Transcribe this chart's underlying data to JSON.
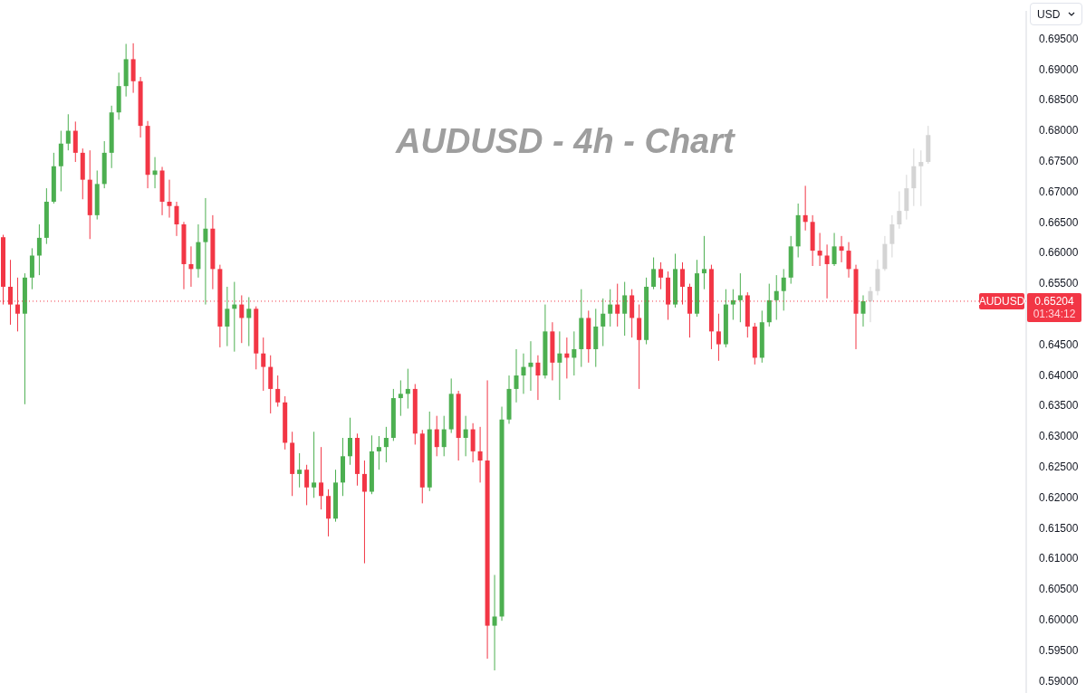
{
  "chart_data": {
    "type": "candlestick",
    "title": "AUDUSD - 4h - Chart",
    "ylabel": "USD",
    "categories": [
      null,
      null,
      null,
      null,
      null,
      null,
      null,
      null,
      null,
      null,
      null,
      null,
      null,
      null,
      null,
      null,
      null,
      null,
      null,
      null,
      null,
      null,
      null,
      null,
      null,
      null,
      null,
      null,
      null,
      null,
      null,
      null,
      null,
      null,
      null,
      null,
      null,
      null,
      null,
      null,
      null,
      null,
      null,
      null,
      null,
      null,
      null,
      null,
      null,
      null,
      null,
      null,
      null,
      null,
      null,
      null,
      null,
      null,
      null,
      null,
      null,
      null,
      null,
      null,
      null,
      null,
      null,
      null,
      null,
      null,
      null,
      null,
      null,
      null,
      null,
      null,
      null,
      null,
      null,
      null,
      null,
      null,
      null,
      null,
      null,
      null,
      null,
      null,
      null,
      null,
      null,
      null,
      null,
      null,
      null,
      null,
      null,
      null,
      null,
      null,
      null,
      null,
      null,
      null,
      null,
      null,
      null,
      null,
      null,
      null,
      null,
      null,
      null,
      null,
      null,
      null,
      null,
      null,
      null,
      null,
      null,
      null,
      null,
      null,
      null,
      null,
      null,
      null,
      null,
      null,
      null,
      null,
      null,
      null,
      null,
      null,
      null,
      null,
      null,
      null,
      null,
      null
    ],
    "series": [
      {
        "ohlc": [
          [
            0.6625,
            0.6629,
            0.6515,
            0.6544
          ],
          [
            0.6544,
            0.6588,
            0.6482,
            0.6515
          ],
          [
            0.6515,
            0.6559,
            0.6471,
            0.65
          ],
          [
            0.65,
            0.6566,
            0.6352,
            0.6559
          ],
          [
            0.6559,
            0.6607,
            0.654,
            0.6595
          ],
          [
            0.6595,
            0.6646,
            0.6563,
            0.6624
          ],
          [
            0.6624,
            0.6705,
            0.6614,
            0.6683
          ],
          [
            0.6683,
            0.6763,
            0.668,
            0.6741
          ],
          [
            0.6741,
            0.6799,
            0.67,
            0.6778
          ],
          [
            0.6778,
            0.6826,
            0.6767,
            0.6799
          ],
          [
            0.6799,
            0.6814,
            0.6748,
            0.6763
          ],
          [
            0.6763,
            0.677,
            0.6687,
            0.6719
          ],
          [
            0.6719,
            0.6767,
            0.6622,
            0.6661
          ],
          [
            0.6661,
            0.6734,
            0.6654,
            0.6712
          ],
          [
            0.6712,
            0.6782,
            0.6705,
            0.6763
          ],
          [
            0.6763,
            0.684,
            0.6738,
            0.6829
          ],
          [
            0.6829,
            0.6894,
            0.6817,
            0.6872
          ],
          [
            0.6872,
            0.6941,
            0.6855,
            0.6916
          ],
          [
            0.6916,
            0.6942,
            0.6861,
            0.688
          ],
          [
            0.688,
            0.6887,
            0.6788,
            0.6807
          ],
          [
            0.6807,
            0.6815,
            0.6705,
            0.6727
          ],
          [
            0.6727,
            0.6756,
            0.6705,
            0.6734
          ],
          [
            0.6734,
            0.674,
            0.6661,
            0.6683
          ],
          [
            0.6683,
            0.6719,
            0.6657,
            0.6676
          ],
          [
            0.6676,
            0.6683,
            0.6627,
            0.6646
          ],
          [
            0.6646,
            0.665,
            0.654,
            0.6581
          ],
          [
            0.6581,
            0.661,
            0.6544,
            0.6573
          ],
          [
            0.6573,
            0.6646,
            0.6559,
            0.6617
          ],
          [
            0.6617,
            0.6689,
            0.6515,
            0.6639
          ],
          [
            0.6639,
            0.6661,
            0.654,
            0.6573
          ],
          [
            0.6573,
            0.658,
            0.6445,
            0.6479
          ],
          [
            0.6479,
            0.6544,
            0.6447,
            0.6508
          ],
          [
            0.6508,
            0.6552,
            0.6438,
            0.6515
          ],
          [
            0.6515,
            0.653,
            0.6452,
            0.6493
          ],
          [
            0.6493,
            0.6527,
            0.6447,
            0.6508
          ],
          [
            0.6508,
            0.6512,
            0.6409,
            0.6435
          ],
          [
            0.6435,
            0.6461,
            0.6374,
            0.6413
          ],
          [
            0.6413,
            0.6432,
            0.6337,
            0.6377
          ],
          [
            0.6377,
            0.6399,
            0.6348,
            0.6355
          ],
          [
            0.6355,
            0.6365,
            0.6278,
            0.6289
          ],
          [
            0.6289,
            0.6307,
            0.6202,
            0.6238
          ],
          [
            0.6238,
            0.6272,
            0.6216,
            0.6245
          ],
          [
            0.6245,
            0.6253,
            0.6187,
            0.6216
          ],
          [
            0.6216,
            0.6307,
            0.6199,
            0.6224
          ],
          [
            0.6224,
            0.6282,
            0.618,
            0.6202
          ],
          [
            0.6202,
            0.6213,
            0.6136,
            0.6165
          ],
          [
            0.6165,
            0.6245,
            0.616,
            0.6224
          ],
          [
            0.6224,
            0.6297,
            0.6202,
            0.6267
          ],
          [
            0.6267,
            0.633,
            0.6253,
            0.6297
          ],
          [
            0.6297,
            0.6304,
            0.6219,
            0.6238
          ],
          [
            0.6238,
            0.626,
            0.6092,
            0.6209
          ],
          [
            0.6209,
            0.6301,
            0.6205,
            0.6275
          ],
          [
            0.6275,
            0.63,
            0.6245,
            0.6282
          ],
          [
            0.6282,
            0.6315,
            0.6257,
            0.6297
          ],
          [
            0.6297,
            0.6377,
            0.6292,
            0.6362
          ],
          [
            0.6362,
            0.6391,
            0.6333,
            0.6369
          ],
          [
            0.6369,
            0.641,
            0.6345,
            0.6377
          ],
          [
            0.6377,
            0.6385,
            0.6286,
            0.6304
          ],
          [
            0.6304,
            0.631,
            0.619,
            0.6216
          ],
          [
            0.6216,
            0.634,
            0.621,
            0.6311
          ],
          [
            0.6311,
            0.6333,
            0.6267,
            0.6282
          ],
          [
            0.6282,
            0.6333,
            0.6267,
            0.6311
          ],
          [
            0.6311,
            0.6394,
            0.6305,
            0.6369
          ],
          [
            0.6369,
            0.6374,
            0.626,
            0.6297
          ],
          [
            0.6297,
            0.6333,
            0.6267,
            0.6311
          ],
          [
            0.6311,
            0.6321,
            0.6257,
            0.6275
          ],
          [
            0.6275,
            0.6315,
            0.6224,
            0.626
          ],
          [
            0.626,
            0.6391,
            0.5936,
            0.599
          ],
          [
            0.599,
            0.6073,
            0.5917,
            0.6005
          ],
          [
            0.6005,
            0.6348,
            0.5998,
            0.6327
          ],
          [
            0.6327,
            0.6399,
            0.632,
            0.6377
          ],
          [
            0.6377,
            0.6442,
            0.6355,
            0.6399
          ],
          [
            0.6399,
            0.6435,
            0.6369,
            0.6413
          ],
          [
            0.6413,
            0.6455,
            0.6374,
            0.642
          ],
          [
            0.642,
            0.6432,
            0.6359,
            0.6399
          ],
          [
            0.6399,
            0.6515,
            0.6394,
            0.6471
          ],
          [
            0.6471,
            0.6486,
            0.6391,
            0.642
          ],
          [
            0.642,
            0.6471,
            0.6359,
            0.6435
          ],
          [
            0.6435,
            0.6461,
            0.6394,
            0.6428
          ],
          [
            0.6428,
            0.6471,
            0.6399,
            0.6442
          ],
          [
            0.6442,
            0.654,
            0.6413,
            0.6493
          ],
          [
            0.6493,
            0.6505,
            0.642,
            0.6442
          ],
          [
            0.6442,
            0.6508,
            0.6413,
            0.6479
          ],
          [
            0.6479,
            0.6525,
            0.6447,
            0.65
          ],
          [
            0.65,
            0.654,
            0.6479,
            0.6515
          ],
          [
            0.6515,
            0.6549,
            0.6479,
            0.65
          ],
          [
            0.65,
            0.6552,
            0.6464,
            0.653
          ],
          [
            0.653,
            0.654,
            0.6461,
            0.6493
          ],
          [
            0.6493,
            0.6515,
            0.6377,
            0.6457
          ],
          [
            0.6457,
            0.6559,
            0.645,
            0.6544
          ],
          [
            0.6544,
            0.6592,
            0.654,
            0.6573
          ],
          [
            0.6573,
            0.6584,
            0.654,
            0.6559
          ],
          [
            0.6559,
            0.6569,
            0.649,
            0.6515
          ],
          [
            0.6515,
            0.6598,
            0.651,
            0.6573
          ],
          [
            0.6573,
            0.6584,
            0.6515,
            0.6544
          ],
          [
            0.6544,
            0.6549,
            0.6461,
            0.65
          ],
          [
            0.65,
            0.6588,
            0.6495,
            0.6566
          ],
          [
            0.6566,
            0.6627,
            0.654,
            0.6573
          ],
          [
            0.6573,
            0.658,
            0.6442,
            0.6471
          ],
          [
            0.6471,
            0.65,
            0.6423,
            0.645
          ],
          [
            0.645,
            0.654,
            0.6445,
            0.6515
          ],
          [
            0.6515,
            0.654,
            0.649,
            0.6522
          ],
          [
            0.6522,
            0.6566,
            0.6486,
            0.653
          ],
          [
            0.653,
            0.6535,
            0.6461,
            0.6479
          ],
          [
            0.6479,
            0.6485,
            0.6417,
            0.6428
          ],
          [
            0.6428,
            0.6505,
            0.642,
            0.6486
          ],
          [
            0.6486,
            0.6549,
            0.6479,
            0.6522
          ],
          [
            0.6522,
            0.6563,
            0.649,
            0.6537
          ],
          [
            0.6537,
            0.6573,
            0.6505,
            0.6559
          ],
          [
            0.6559,
            0.6627,
            0.6549,
            0.661
          ],
          [
            0.661,
            0.668,
            0.6592,
            0.6661
          ],
          [
            0.6661,
            0.6709,
            0.6636,
            0.665
          ],
          [
            0.665,
            0.6661,
            0.6578,
            0.6603
          ],
          [
            0.6603,
            0.6632,
            0.6578,
            0.6595
          ],
          [
            0.6595,
            0.6613,
            0.6525,
            0.6581
          ],
          [
            0.6581,
            0.6632,
            0.6578,
            0.661
          ],
          [
            0.661,
            0.6627,
            0.6584,
            0.6603
          ],
          [
            0.6603,
            0.6617,
            0.6559,
            0.6573
          ],
          [
            0.6573,
            0.658,
            0.6442,
            0.65
          ],
          [
            0.65,
            0.653,
            0.6479,
            0.65204
          ],
          null,
          null,
          null,
          null,
          null,
          null,
          null,
          null,
          null,
          null,
          null,
          null,
          null,
          null,
          null,
          null,
          null,
          null,
          null,
          null,
          null,
          null
        ],
        "colors": [
          "#f23645",
          "#f23645",
          "#f23645",
          "#4caf50",
          "#4caf50",
          "#4caf50",
          "#4caf50",
          "#4caf50",
          "#4caf50",
          "#4caf50",
          "#f23645",
          "#f23645",
          "#f23645",
          "#4caf50",
          "#4caf50",
          "#4caf50",
          "#4caf50",
          "#4caf50",
          "#f23645",
          "#f23645",
          "#f23645",
          "#4caf50",
          "#f23645",
          "#f23645",
          "#f23645",
          "#f23645",
          "#f23645",
          "#4caf50",
          "#4caf50",
          "#f23645",
          "#f23645",
          "#4caf50",
          "#4caf50",
          "#f23645",
          "#4caf50",
          "#f23645",
          "#f23645",
          "#f23645",
          "#f23645",
          "#f23645",
          "#f23645",
          "#4caf50",
          "#f23645",
          "#4caf50",
          "#f23645",
          "#f23645",
          "#4caf50",
          "#4caf50",
          "#4caf50",
          "#f23645",
          "#f23645",
          "#4caf50",
          "#4caf50",
          "#4caf50",
          "#4caf50",
          "#4caf50",
          "#4caf50",
          "#f23645",
          "#f23645",
          "#4caf50",
          "#f23645",
          "#4caf50",
          "#4caf50",
          "#f23645",
          "#4caf50",
          "#f23645",
          "#f23645",
          "#f23645",
          "#4caf50",
          "#4caf50",
          "#4caf50",
          "#4caf50",
          "#4caf50",
          "#4caf50",
          "#f23645",
          "#4caf50",
          "#f23645",
          "#4caf50",
          "#f23645",
          "#4caf50",
          "#4caf50",
          "#f23645",
          "#4caf50",
          "#4caf50",
          "#4caf50",
          "#f23645",
          "#4caf50",
          "#f23645",
          "#f23645",
          "#4caf50",
          "#4caf50",
          "#f23645",
          "#f23645",
          "#4caf50",
          "#f23645",
          "#f23645",
          "#4caf50",
          "#4caf50",
          "#f23645",
          "#f23645",
          "#4caf50",
          "#4caf50",
          "#4caf50",
          "#f23645",
          "#f23645",
          "#4caf50",
          "#4caf50",
          "#4caf50",
          "#4caf50",
          "#4caf50",
          "#4caf50",
          "#f23645",
          "#f23645",
          "#f23645",
          "#f23645",
          "#4caf50",
          "#f23645",
          "#f23645",
          "#f23645",
          "#4caf50",
          null,
          null,
          null,
          null,
          null,
          null,
          null,
          null,
          null,
          null,
          null,
          null,
          null,
          null,
          null,
          null,
          null,
          null,
          null,
          null,
          null,
          null
        ]
      },
      {
        "color": "#d4d4d4",
        "ohlc": [
          null,
          null,
          null,
          null,
          null,
          null,
          null,
          null,
          null,
          null,
          null,
          null,
          null,
          null,
          null,
          null,
          null,
          null,
          null,
          null,
          null,
          null,
          null,
          null,
          null,
          null,
          null,
          null,
          null,
          null,
          null,
          null,
          null,
          null,
          null,
          null,
          null,
          null,
          null,
          null,
          null,
          null,
          null,
          null,
          null,
          null,
          null,
          null,
          null,
          null,
          null,
          null,
          null,
          null,
          null,
          null,
          null,
          null,
          null,
          null,
          null,
          null,
          null,
          null,
          null,
          null,
          null,
          null,
          null,
          null,
          null,
          null,
          null,
          null,
          null,
          null,
          null,
          null,
          null,
          null,
          null,
          null,
          null,
          null,
          null,
          null,
          null,
          null,
          null,
          null,
          null,
          null,
          null,
          null,
          null,
          null,
          null,
          null,
          null,
          null,
          null,
          null,
          null,
          null,
          null,
          null,
          null,
          null,
          null,
          null,
          null,
          null,
          null,
          null,
          null,
          null,
          null,
          null,
          null,
          null,
          [
            0.652,
            0.6544,
            0.6486,
            0.6537
          ],
          [
            0.6537,
            0.6588,
            0.653,
            0.6573
          ],
          [
            0.6573,
            0.6627,
            0.657,
            0.6614
          ],
          [
            0.6614,
            0.6661,
            0.6592,
            0.6646
          ],
          [
            0.6646,
            0.67,
            0.6639,
            0.6668
          ],
          [
            0.6668,
            0.6727,
            0.6654,
            0.6705
          ],
          [
            0.6705,
            0.677,
            0.6676,
            0.6741
          ],
          [
            0.6741,
            0.6767,
            0.6676,
            0.6748
          ],
          [
            0.6748,
            0.6807,
            0.6745,
            0.6792
          ],
          null,
          null,
          null,
          null,
          null,
          null,
          null,
          null,
          null,
          null,
          null,
          null,
          null
        ]
      }
    ],
    "ylim": [
      0.588,
      0.6995
    ],
    "yticks": [
      {
        "value": 0.59,
        "label": "0.59000"
      },
      {
        "value": 0.595,
        "label": "0.59500"
      },
      {
        "value": 0.6,
        "label": "0.60000"
      },
      {
        "value": 0.605,
        "label": "0.60500"
      },
      {
        "value": 0.61,
        "label": "0.61000"
      },
      {
        "value": 0.615,
        "label": "0.61500"
      },
      {
        "value": 0.62,
        "label": "0.62000"
      },
      {
        "value": 0.625,
        "label": "0.62500"
      },
      {
        "value": 0.63,
        "label": "0.63000"
      },
      {
        "value": 0.635,
        "label": "0.63500"
      },
      {
        "value": 0.64,
        "label": "0.64000"
      },
      {
        "value": 0.645,
        "label": "0.64500"
      },
      {
        "value": 0.655,
        "label": "0.65500"
      },
      {
        "value": 0.66,
        "label": "0.66000"
      },
      {
        "value": 0.665,
        "label": "0.66500"
      },
      {
        "value": 0.67,
        "label": "0.67000"
      },
      {
        "value": 0.675,
        "label": "0.67500"
      },
      {
        "value": 0.68,
        "label": "0.68000"
      },
      {
        "value": 0.685,
        "label": "0.68500"
      },
      {
        "value": 0.69,
        "label": "0.69000"
      },
      {
        "value": 0.695,
        "label": "0.69500"
      }
    ],
    "tick_labels": "y",
    "ref_lines": [
      {
        "axis": "y",
        "value": 0.65204,
        "label": "AUDUSD",
        "color": "#f23645",
        "line_style": "dotted"
      }
    ],
    "annotations": [
      "0.65204",
      "01:34:12"
    ]
  }
}
